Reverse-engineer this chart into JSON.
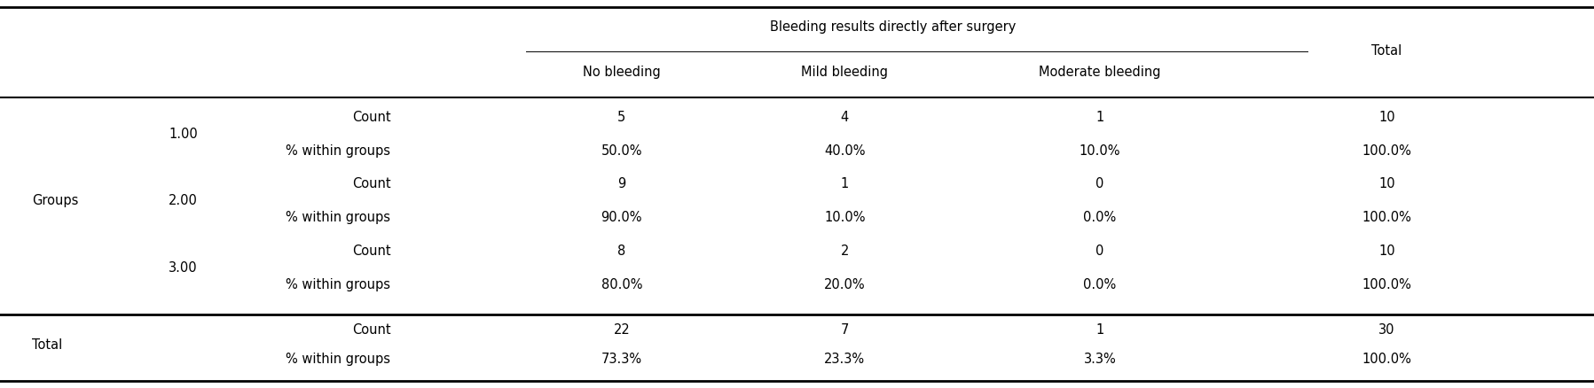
{
  "title": "Bleeding results directly after surgery",
  "col_headers": [
    "No bleeding",
    "Mild bleeding",
    "Moderate bleeding",
    "Total"
  ],
  "row_groups": [
    {
      "group_label": "Groups",
      "subgroups": [
        {
          "sub_label": "1.00",
          "rows": [
            {
              "label": "Count",
              "values": [
                "5",
                "4",
                "1",
                "10"
              ]
            },
            {
              "label": "% within groups",
              "values": [
                "50.0%",
                "40.0%",
                "10.0%",
                "100.0%"
              ]
            }
          ]
        },
        {
          "sub_label": "2.00",
          "rows": [
            {
              "label": "Count",
              "values": [
                "9",
                "1",
                "0",
                "10"
              ]
            },
            {
              "label": "% within groups",
              "values": [
                "90.0%",
                "10.0%",
                "0.0%",
                "100.0%"
              ]
            }
          ]
        },
        {
          "sub_label": "3.00",
          "rows": [
            {
              "label": "Count",
              "values": [
                "8",
                "2",
                "0",
                "10"
              ]
            },
            {
              "label": "% within groups",
              "values": [
                "80.0%",
                "20.0%",
                "0.0%",
                "100.0%"
              ]
            }
          ]
        }
      ]
    }
  ],
  "total_rows": [
    {
      "label": "Count",
      "values": [
        "22",
        "7",
        "1",
        "30"
      ]
    },
    {
      "label": "% within groups",
      "values": [
        "73.3%",
        "23.3%",
        "3.3%",
        "100.0%"
      ]
    }
  ],
  "total_label": "Total",
  "bg_color": "#ffffff",
  "text_color": "#000000",
  "font_size": 10.5
}
